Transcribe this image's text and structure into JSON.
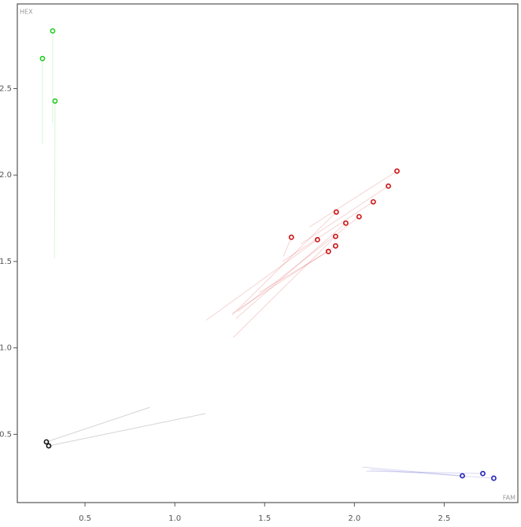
{
  "chart_data": {
    "type": "scatter",
    "xlabel": "FAM",
    "ylabel": "HEX",
    "xlim": [
      0.123,
      2.91
    ],
    "ylim": [
      0.105,
      2.99
    ],
    "xticks": [
      0.5,
      {
        "value": 1,
        "label": "1.0"
      },
      1.5,
      {
        "value": 2,
        "label": "2.0"
      },
      2.5
    ],
    "yticks": [
      0.5,
      {
        "value": 1,
        "label": "1.0"
      },
      1.5,
      {
        "value": 2,
        "label": "2.0"
      },
      2.5
    ],
    "series": [
      {
        "color": "#22cc22",
        "x": [
          0.263,
          0.32,
          0.333
        ],
        "y": [
          2.674,
          2.834,
          2.428
        ],
        "tail_x": [
          0.263,
          0.32,
          0.33
        ],
        "tail_y": [
          2.18,
          2.3,
          1.52
        ]
      },
      {
        "color": "#cc1111",
        "x": [
          1.649,
          1.794,
          1.899,
          1.952,
          2.026,
          1.895,
          1.855,
          1.895,
          2.105,
          2.189,
          2.237
        ],
        "y": [
          1.64,
          1.626,
          1.786,
          1.722,
          1.759,
          1.645,
          1.558,
          1.59,
          1.845,
          1.936,
          2.023
        ],
        "tail_x": [
          1.605,
          1.175,
          1.32,
          1.34,
          1.35,
          1.325,
          1.47,
          1.32,
          1.6,
          1.7,
          1.75
        ],
        "tail_y": [
          1.53,
          1.16,
          1.19,
          1.17,
          1.21,
          1.06,
          1.32,
          1.2,
          1.5,
          1.6,
          1.7
        ]
      },
      {
        "color": "#111111",
        "x": [
          0.285,
          0.298
        ],
        "y": [
          0.456,
          0.433
        ],
        "tail_x": [
          0.86,
          1.17
        ],
        "tail_y": [
          0.656,
          0.62
        ]
      },
      {
        "color": "#2222bb",
        "x": [
          2.601,
          2.715,
          2.776
        ],
        "y": [
          0.26,
          0.273,
          0.246
        ],
        "tail_x": [
          2.044,
          2.066,
          2.088
        ],
        "tail_y": [
          0.31,
          0.287,
          0.296
        ]
      }
    ]
  }
}
